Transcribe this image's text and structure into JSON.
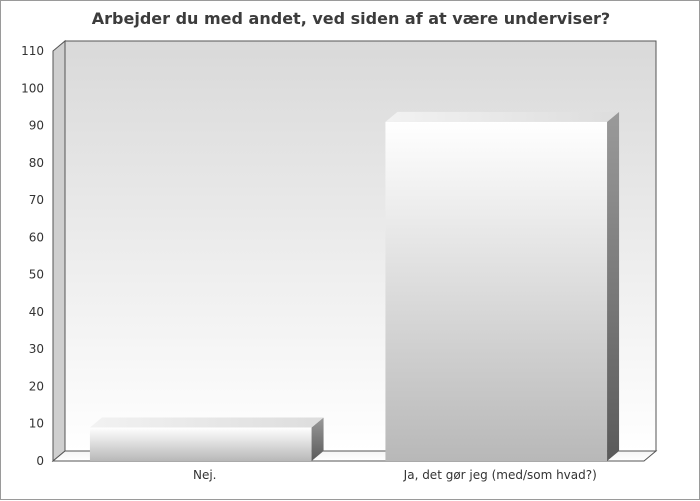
{
  "chart_data": {
    "type": "bar",
    "title": "Arbejder du med andet, ved siden af at være underviser?",
    "xlabel": "",
    "ylabel": "",
    "categories": [
      "Nej.",
      "Ja, det gør jeg (med/som hvad?)"
    ],
    "values": [
      9,
      91
    ],
    "ylim": [
      0,
      110
    ],
    "yticks": [
      0,
      10,
      20,
      30,
      40,
      50,
      60,
      70,
      80,
      90,
      100,
      110
    ],
    "grid": false,
    "legend": "none",
    "style": "3d"
  }
}
